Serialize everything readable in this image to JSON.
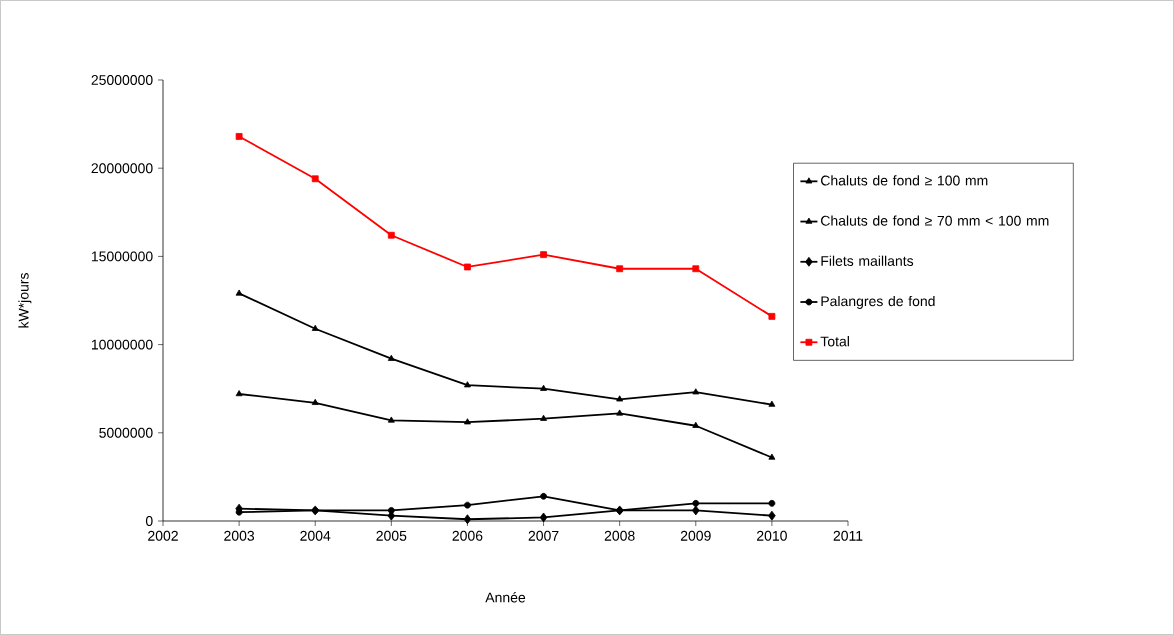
{
  "chart_data": {
    "type": "line",
    "xlabel": "Année",
    "ylabel": "kW*jours",
    "x": [
      2003,
      2004,
      2005,
      2006,
      2007,
      2008,
      2009,
      2010
    ],
    "series": [
      {
        "name": "Chaluts de fond ≥ 100 mm",
        "color": "#000000",
        "marker": "triangle",
        "values": [
          12900000,
          10900000,
          9200000,
          7700000,
          7500000,
          6900000,
          7300000,
          6600000
        ]
      },
      {
        "name": "Chaluts de fond ≥ 70 mm < 100 mm",
        "color": "#000000",
        "marker": "triangle",
        "values": [
          7200000,
          6700000,
          5700000,
          5600000,
          5800000,
          6100000,
          5400000,
          3600000
        ]
      },
      {
        "name": "Filets maillants",
        "color": "#000000",
        "marker": "diamond",
        "values": [
          700000,
          600000,
          300000,
          100000,
          200000,
          600000,
          600000,
          300000
        ]
      },
      {
        "name": "Palangres de fond",
        "color": "#000000",
        "marker": "circle",
        "values": [
          500000,
          600000,
          600000,
          900000,
          1400000,
          600000,
          1000000,
          1000000
        ]
      },
      {
        "name": "Total",
        "color": "#ff0000",
        "marker": "square",
        "values": [
          21800000,
          19400000,
          16200000,
          14400000,
          15100000,
          14300000,
          14300000,
          11600000
        ]
      }
    ],
    "xlim": [
      2002,
      2011
    ],
    "xticks": [
      2002,
      2003,
      2004,
      2005,
      2006,
      2007,
      2008,
      2009,
      2010,
      2011
    ],
    "ylim": [
      0,
      25000000
    ],
    "yticks": [
      0,
      5000000,
      10000000,
      15000000,
      20000000,
      25000000
    ],
    "legend": "right",
    "grid": false,
    "line_style": "solid"
  }
}
